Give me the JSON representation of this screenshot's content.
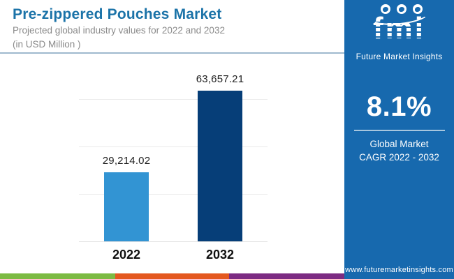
{
  "header": {
    "title": "Pre-zippered Pouches Market",
    "subtitle_line1": "Projected global industry values for 2022 and 2032",
    "subtitle_line2": "(in USD Million )"
  },
  "chart_data": {
    "type": "bar",
    "categories": [
      "2022",
      "2032"
    ],
    "values": [
      29214.02,
      63657.21
    ],
    "value_labels": [
      "29,214.02",
      "63,657.21"
    ],
    "bar_colors": [
      "#3294D3",
      "#063E78"
    ],
    "title": "Pre-zippered Pouches Market",
    "xlabel": "",
    "ylabel": "",
    "unit": "USD Million",
    "ylim": [
      0,
      80000
    ],
    "gridline_values": [
      20000,
      40000,
      60000
    ],
    "grid": true,
    "legend": false
  },
  "sidebar": {
    "logo_text": "fmi",
    "logo_caption": "Future Market Insights",
    "cagr_value": "8.1%",
    "cagr_label_line1": "Global Market",
    "cagr_label_line2": "CAGR 2022 - 2032",
    "website": "www.futuremarketinsights.com",
    "background_color": "#1769AE"
  },
  "footer_strip": {
    "colors": [
      "#7CBA43",
      "#E4581F",
      "#7C2B82"
    ]
  }
}
